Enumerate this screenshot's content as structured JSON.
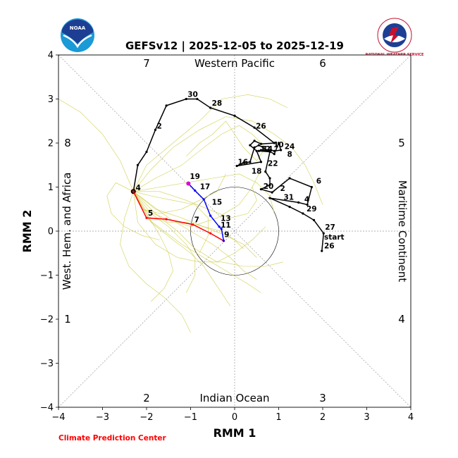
{
  "chart_data": {
    "type": "scatter",
    "title": "GEFSv12 | 2025-12-05 to 2025-12-19",
    "xlabel": "RMM 1",
    "ylabel": "RMM 2",
    "xlim": [
      -4,
      4
    ],
    "ylim": [
      -4,
      4
    ],
    "ticks": [
      -4,
      -3,
      -2,
      -1,
      0,
      1,
      2,
      3,
      4
    ],
    "tick_labels": [
      "−4",
      "−3",
      "−2",
      "−1",
      "0",
      "1",
      "2",
      "3",
      "4"
    ],
    "unit_circle_radius": 1,
    "regions": {
      "top": "Western Pacific",
      "bottom": "Indian Ocean",
      "left": "West. Hem. and Africa",
      "right": "Maritime Continent"
    },
    "phases": [
      {
        "label": "1",
        "pos": "left-bottom"
      },
      {
        "label": "2",
        "pos": "bottom-left"
      },
      {
        "label": "3",
        "pos": "bottom-right"
      },
      {
        "label": "4",
        "pos": "right-bottom"
      },
      {
        "label": "5",
        "pos": "right-top"
      },
      {
        "label": "6",
        "pos": "top-right"
      },
      {
        "label": "7",
        "pos": "top-left"
      },
      {
        "label": "8",
        "pos": "left-top"
      }
    ],
    "credit": "Climate Prediction Center",
    "logos": {
      "left": "NOAA",
      "right": "NATIONAL WEATHER SERVICE"
    },
    "colors": {
      "observed": "#000000",
      "forecast_week1": "#ff0000",
      "forecast_week2": "#0000ff",
      "forecast_end": "#dd00dd",
      "ensemble": "#c8c832",
      "grid": "#999999"
    },
    "observed": {
      "x": [
        1.98,
        2.02,
        1.8,
        1.55,
        1.25,
        0.8,
        1.45,
        1.65,
        1.75,
        1.25,
        0.85,
        0.6,
        0.8,
        0.8,
        0.7,
        0.8,
        0.55,
        0.6,
        0.65,
        0.7,
        0.8,
        0.9,
        1.05,
        1.0,
        0.9,
        0.55,
        0.45,
        0.35,
        0.2,
        0.05,
        0.6,
        0.5,
        0.35,
        0.45,
        0.6,
        0.9,
        0.45,
        0.0,
        -0.55,
        -0.85,
        -1.1,
        -1.55,
        -1.8,
        -2.0,
        -2.2,
        -2.3
      ],
      "y": [
        -0.45,
        -0.05,
        0.25,
        0.4,
        0.55,
        0.75,
        0.65,
        0.6,
        1.0,
        1.2,
        0.88,
        0.95,
        1.05,
        1.2,
        1.35,
        1.8,
        1.82,
        1.84,
        1.84,
        1.84,
        1.84,
        1.82,
        1.84,
        2.0,
        1.75,
        1.95,
        1.9,
        1.57,
        1.55,
        1.48,
        1.57,
        1.82,
        1.95,
        2.05,
        1.98,
        2.0,
        2.35,
        2.62,
        2.8,
        3.0,
        3.0,
        2.85,
        2.3,
        1.8,
        1.5,
        0.9
      ],
      "labels": [
        {
          "text": "start",
          "x": 2.0,
          "y": -0.22
        },
        {
          "text": "26",
          "x": 2.0,
          "y": -0.42
        },
        {
          "text": "27",
          "x": 2.02,
          "y": 0.0
        },
        {
          "text": "29",
          "x": 1.6,
          "y": 0.42
        },
        {
          "text": "4",
          "x": 1.55,
          "y": 0.63
        },
        {
          "text": "31",
          "x": 1.08,
          "y": 0.68
        },
        {
          "text": "2",
          "x": 1.0,
          "y": 0.88
        },
        {
          "text": "20",
          "x": 0.62,
          "y": 0.93
        },
        {
          "text": "6",
          "x": 1.82,
          "y": 1.05
        },
        {
          "text": "18",
          "x": 0.35,
          "y": 1.27
        },
        {
          "text": "22",
          "x": 0.72,
          "y": 1.45
        },
        {
          "text": "16",
          "x": 0.04,
          "y": 1.48
        },
        {
          "text": "8",
          "x": 1.16,
          "y": 1.66
        },
        {
          "text": "24",
          "x": 1.1,
          "y": 1.83
        },
        {
          "text": "10",
          "x": 0.85,
          "y": 1.87
        },
        {
          "text": "12",
          "x": 0.55,
          "y": 1.78
        },
        {
          "text": "14",
          "x": 0.6,
          "y": 1.78
        },
        {
          "text": "26",
          "x": 0.45,
          "y": 2.3
        },
        {
          "text": "28",
          "x": -0.55,
          "y": 2.82
        },
        {
          "text": "30",
          "x": -1.1,
          "y": 3.02
        },
        {
          "text": "2",
          "x": -1.8,
          "y": 2.3
        },
        {
          "text": "4",
          "x": -2.28,
          "y": 0.9
        }
      ]
    },
    "forecast": {
      "week1": {
        "x": [
          -2.3,
          -2.0,
          -1.55,
          -0.95,
          -0.55,
          -0.25
        ],
        "y": [
          0.9,
          0.3,
          0.27,
          0.15,
          -0.05,
          -0.22
        ]
      },
      "week2": {
        "x": [
          -0.25,
          -0.3,
          -0.35,
          -0.55,
          -0.7,
          -0.9,
          -1.05
        ],
        "y": [
          -0.22,
          0.05,
          0.1,
          0.35,
          0.72,
          0.92,
          1.08
        ]
      },
      "labels": [
        {
          "text": "5",
          "x": -2.0,
          "y": 0.32
        },
        {
          "text": "7",
          "x": -0.95,
          "y": 0.17
        },
        {
          "text": "9",
          "x": -0.27,
          "y": -0.17
        },
        {
          "text": "11",
          "x": -0.35,
          "y": 0.05
        },
        {
          "text": "13",
          "x": -0.35,
          "y": 0.2
        },
        {
          "text": "15",
          "x": -0.55,
          "y": 0.57
        },
        {
          "text": "17",
          "x": -0.82,
          "y": 0.92
        },
        {
          "text": "19",
          "x": -1.05,
          "y": 1.15
        }
      ]
    },
    "ensemble_members": [
      {
        "x": [
          -2.3,
          -1.8,
          -1.2,
          -0.7,
          -0.3,
          0.1,
          0.4,
          0.7,
          0.5,
          0.2,
          0.0,
          -0.2,
          -0.5,
          -0.8,
          -1.1
        ],
        "y": [
          0.9,
          1.2,
          1.5,
          1.9,
          2.2,
          2.4,
          2.2,
          1.9,
          1.6,
          1.9,
          2.2,
          2.5,
          2.2,
          2.0,
          1.7
        ]
      },
      {
        "x": [
          -2.3,
          -1.9,
          -1.4,
          -0.8,
          -0.2,
          0.4,
          0.9,
          1.3,
          1.6,
          1.8,
          2.0
        ],
        "y": [
          0.9,
          1.4,
          1.9,
          2.3,
          2.6,
          2.5,
          2.2,
          1.9,
          1.5,
          1.1,
          0.6
        ]
      },
      {
        "x": [
          -2.3,
          -2.6,
          -3.0,
          -3.5,
          -4.0
        ],
        "y": [
          0.9,
          1.6,
          2.2,
          2.7,
          3.0
        ]
      },
      {
        "x": [
          -2.3,
          -2.0,
          -1.4,
          -0.8,
          -0.3,
          0.3,
          0.8,
          1.2
        ],
        "y": [
          0.9,
          1.5,
          2.0,
          2.5,
          3.0,
          3.1,
          3.0,
          2.8
        ]
      },
      {
        "x": [
          -2.3,
          -2.0,
          -1.6,
          -1.2,
          -0.7,
          -0.2,
          0.3,
          0.6
        ],
        "y": [
          0.9,
          0.3,
          0.0,
          -0.3,
          -0.6,
          -0.9,
          -1.2,
          -1.4
        ]
      },
      {
        "x": [
          -2.3,
          -2.5,
          -2.6,
          -2.4,
          -2.0,
          -1.6,
          -1.2,
          -1.0
        ],
        "y": [
          0.9,
          0.3,
          -0.3,
          -0.8,
          -1.2,
          -1.5,
          -1.9,
          -2.3
        ]
      },
      {
        "x": [
          -2.3,
          -1.9,
          -1.5,
          -1.0,
          -0.5,
          -0.1,
          0.2,
          0.5
        ],
        "y": [
          0.9,
          0.6,
          0.3,
          0.0,
          -0.3,
          -0.6,
          -0.9,
          -1.1
        ]
      },
      {
        "x": [
          -2.3,
          -1.7,
          -1.1,
          -0.5,
          0.1,
          0.5,
          0.8,
          0.9
        ],
        "y": [
          0.9,
          1.0,
          1.1,
          1.2,
          1.3,
          1.1,
          0.8,
          0.4
        ]
      },
      {
        "x": [
          -2.3,
          -1.8,
          -1.3,
          -0.9,
          -0.4,
          0.0,
          0.4,
          0.7
        ],
        "y": [
          0.9,
          0.4,
          0.0,
          -0.4,
          -0.7,
          -0.5,
          -0.2,
          0.1
        ]
      },
      {
        "x": [
          -2.3,
          -1.9,
          -1.4,
          -1.0,
          -0.7,
          -0.5,
          -0.3,
          -0.1
        ],
        "y": [
          0.9,
          0.2,
          -0.2,
          -0.5,
          -0.8,
          -1.1,
          -1.4,
          -1.7
        ]
      },
      {
        "x": [
          -2.3,
          -2.7,
          -2.9,
          -2.8,
          -2.5,
          -2.1,
          -1.7
        ],
        "y": [
          0.9,
          1.1,
          0.8,
          0.4,
          0.1,
          -0.1,
          -0.2
        ]
      },
      {
        "x": [
          -2.3,
          -2.1,
          -1.6,
          -1.0,
          -0.4,
          0.1,
          0.4,
          0.6
        ],
        "y": [
          0.9,
          0.5,
          0.3,
          0.1,
          0.3,
          0.6,
          1.0,
          1.4
        ]
      },
      {
        "x": [
          -2.3,
          -1.9,
          -1.4,
          -0.9,
          -0.6,
          -0.6,
          -0.8
        ],
        "y": [
          0.9,
          0.8,
          0.7,
          0.6,
          0.3,
          -0.1,
          -0.5
        ]
      },
      {
        "x": [
          -2.3,
          -2.2,
          -1.8,
          -1.3,
          -0.8,
          -0.3,
          0.2,
          0.7,
          1.1
        ],
        "y": [
          0.9,
          0.2,
          -0.3,
          -0.6,
          -0.7,
          -0.7,
          -0.8,
          -0.8,
          -0.7
        ]
      },
      {
        "x": [
          -2.3,
          -1.8,
          -1.2,
          -0.7,
          -0.2,
          0.2,
          0.5
        ],
        "y": [
          0.9,
          0.5,
          0.3,
          0.1,
          -0.1,
          -0.3,
          -0.6
        ]
      },
      {
        "x": [
          -2.3,
          -1.9,
          -1.5,
          -1.1,
          -0.9,
          -0.9,
          -1.1
        ],
        "y": [
          0.9,
          0.4,
          0.1,
          -0.3,
          -0.6,
          -1.0,
          -1.4
        ]
      },
      {
        "x": [
          -2.3,
          -1.7,
          -1.1,
          -0.6,
          -0.1,
          0.3,
          0.5,
          0.4
        ],
        "y": [
          0.9,
          0.9,
          0.7,
          0.5,
          0.3,
          0.4,
          0.7,
          1.0
        ]
      },
      {
        "x": [
          -2.3,
          -2.0,
          -1.7,
          -1.5,
          -1.4,
          -1.6,
          -1.9
        ],
        "y": [
          0.9,
          0.4,
          -0.1,
          -0.5,
          -0.9,
          -1.3,
          -1.6
        ]
      },
      {
        "x": [
          -2.3,
          -1.9,
          -1.5,
          -1.1,
          -0.7,
          -0.3,
          0.0,
          0.2
        ],
        "y": [
          0.9,
          0.3,
          0.2,
          0.2,
          0.1,
          0.0,
          -0.2,
          -0.4
        ]
      },
      {
        "x": [
          -2.3,
          -2.1,
          -1.7,
          -1.2,
          -0.8,
          -0.4,
          -0.2
        ],
        "y": [
          0.9,
          0.5,
          0.4,
          0.5,
          0.7,
          0.9,
          1.3
        ]
      }
    ]
  }
}
